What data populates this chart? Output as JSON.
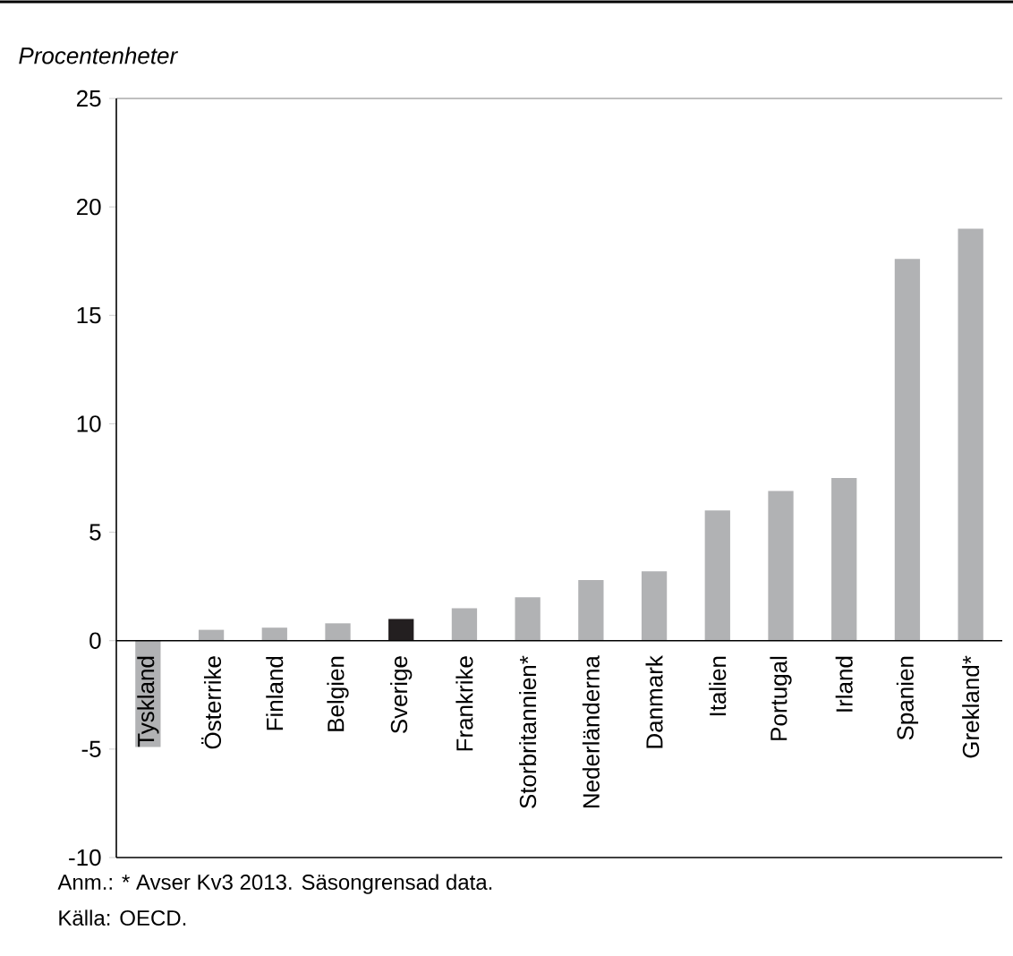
{
  "chart_data": {
    "type": "bar",
    "ylabel": "Procentenheter",
    "categories": [
      "Tyskland",
      "Österrike",
      "Finland",
      "Belgien",
      "Sverige",
      "Frankrike",
      "Storbritannien*",
      "Nederländerna",
      "Danmark",
      "Italien",
      "Portugal",
      "Irland",
      "Spanien",
      "Grekland*"
    ],
    "values": [
      -4.9,
      0.5,
      0.6,
      0.8,
      1.0,
      1.5,
      2.0,
      2.8,
      3.2,
      6.0,
      6.9,
      7.5,
      17.6,
      19.0
    ],
    "colors": [
      "#b1b2b4",
      "#b1b2b4",
      "#b1b2b4",
      "#b1b2b4",
      "#231f20",
      "#b1b2b4",
      "#b1b2b4",
      "#b1b2b4",
      "#b1b2b4",
      "#b1b2b4",
      "#b1b2b4",
      "#b1b2b4",
      "#b1b2b4",
      "#b1b2b4"
    ],
    "ylim": [
      -10,
      25
    ],
    "yticks": [
      -10,
      -5,
      0,
      5,
      10,
      15,
      20,
      25
    ],
    "grid": false,
    "annotations": [
      "Anm.: * Avser Kv3 2013. Säsongrensad data.",
      "Källa: OECD."
    ]
  }
}
